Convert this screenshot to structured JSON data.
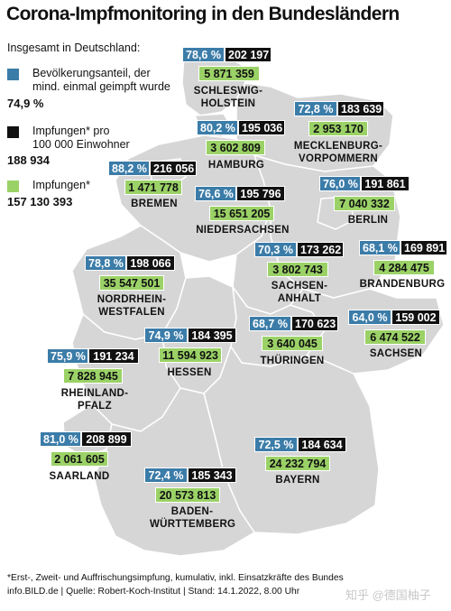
{
  "title": "Corona-Impfmonitoring in den Bundesländern",
  "colors": {
    "blue": "#3b7ca8",
    "black": "#111111",
    "green": "#9bd267",
    "map_fill": "#d6d6d6",
    "map_border": "#ffffff"
  },
  "legend": {
    "heading": "Insgesamt in Deutschland:",
    "items": [
      {
        "color": "#3b7ca8",
        "label": "Bevölkerungsanteil, der\nmind. einmal geimpft wurde",
        "value": "74,9 %"
      },
      {
        "color": "#111111",
        "label": "Impfungen* pro\n100 000 Einwohner",
        "value": "188 934"
      },
      {
        "color": "#9bd267",
        "label": "Impfungen*",
        "value": "157 130 393"
      }
    ]
  },
  "states": [
    {
      "name": "SCHLESWIG-\nHOLSTEIN",
      "share": "78,6 %",
      "per100k": "202 197",
      "total": "5 871 359"
    },
    {
      "name": "MECKLENBURG-\nVORPOMMERN",
      "share": "72,8 %",
      "per100k": "183 639",
      "total": "2 953 170"
    },
    {
      "name": "HAMBURG",
      "share": "80,2 %",
      "per100k": "195 036",
      "total": "3 602 809"
    },
    {
      "name": "BREMEN",
      "share": "88,2 %",
      "per100k": "216 056",
      "total": "1 471 778"
    },
    {
      "name": "NIEDERSACHSEN",
      "share": "76,6 %",
      "per100k": "195 796",
      "total": "15 651 205"
    },
    {
      "name": "BERLIN",
      "share": "76,0 %",
      "per100k": "191 861",
      "total": "7 040 332"
    },
    {
      "name": "SACHSEN-\nANHALT",
      "share": "70,3 %",
      "per100k": "173 262",
      "total": "3 802 743"
    },
    {
      "name": "BRANDENBURG",
      "share": "68,1 %",
      "per100k": "169 891",
      "total": "4 284 475"
    },
    {
      "name": "NORDRHEIN-\nWESTFALEN",
      "share": "78,8 %",
      "per100k": "198 066",
      "total": "35 547 501"
    },
    {
      "name": "THÜRINGEN",
      "share": "68,7 %",
      "per100k": "170 623",
      "total": "3 640 045"
    },
    {
      "name": "SACHSEN",
      "share": "64,0 %",
      "per100k": "159 002",
      "total": "6 474 522"
    },
    {
      "name": "HESSEN",
      "share": "74,9 %",
      "per100k": "184 395",
      "total": "11 594 923"
    },
    {
      "name": "RHEINLAND-\nPFALZ",
      "share": "75,9 %",
      "per100k": "191 234",
      "total": "7 828 945"
    },
    {
      "name": "SAARLAND",
      "share": "81,0 %",
      "per100k": "208 899",
      "total": "2 061 605"
    },
    {
      "name": "BAYERN",
      "share": "72,5 %",
      "per100k": "184 634",
      "total": "24 232 794"
    },
    {
      "name": "BADEN-\nWÜRTTEMBERG",
      "share": "72,4 %",
      "per100k": "185 343",
      "total": "20 573 813"
    }
  ],
  "footnote": {
    "line1": "*Erst-, Zweit- und Auffrischungsimpfung, kumulativ, inkl. Einsatzkräfte des Bundes",
    "line2": "info.BILD.de | Quelle: Robert-Koch-Institut | Stand: 14.1.2022, 8.00 Uhr"
  },
  "watermark": "知乎 @德国柚子"
}
